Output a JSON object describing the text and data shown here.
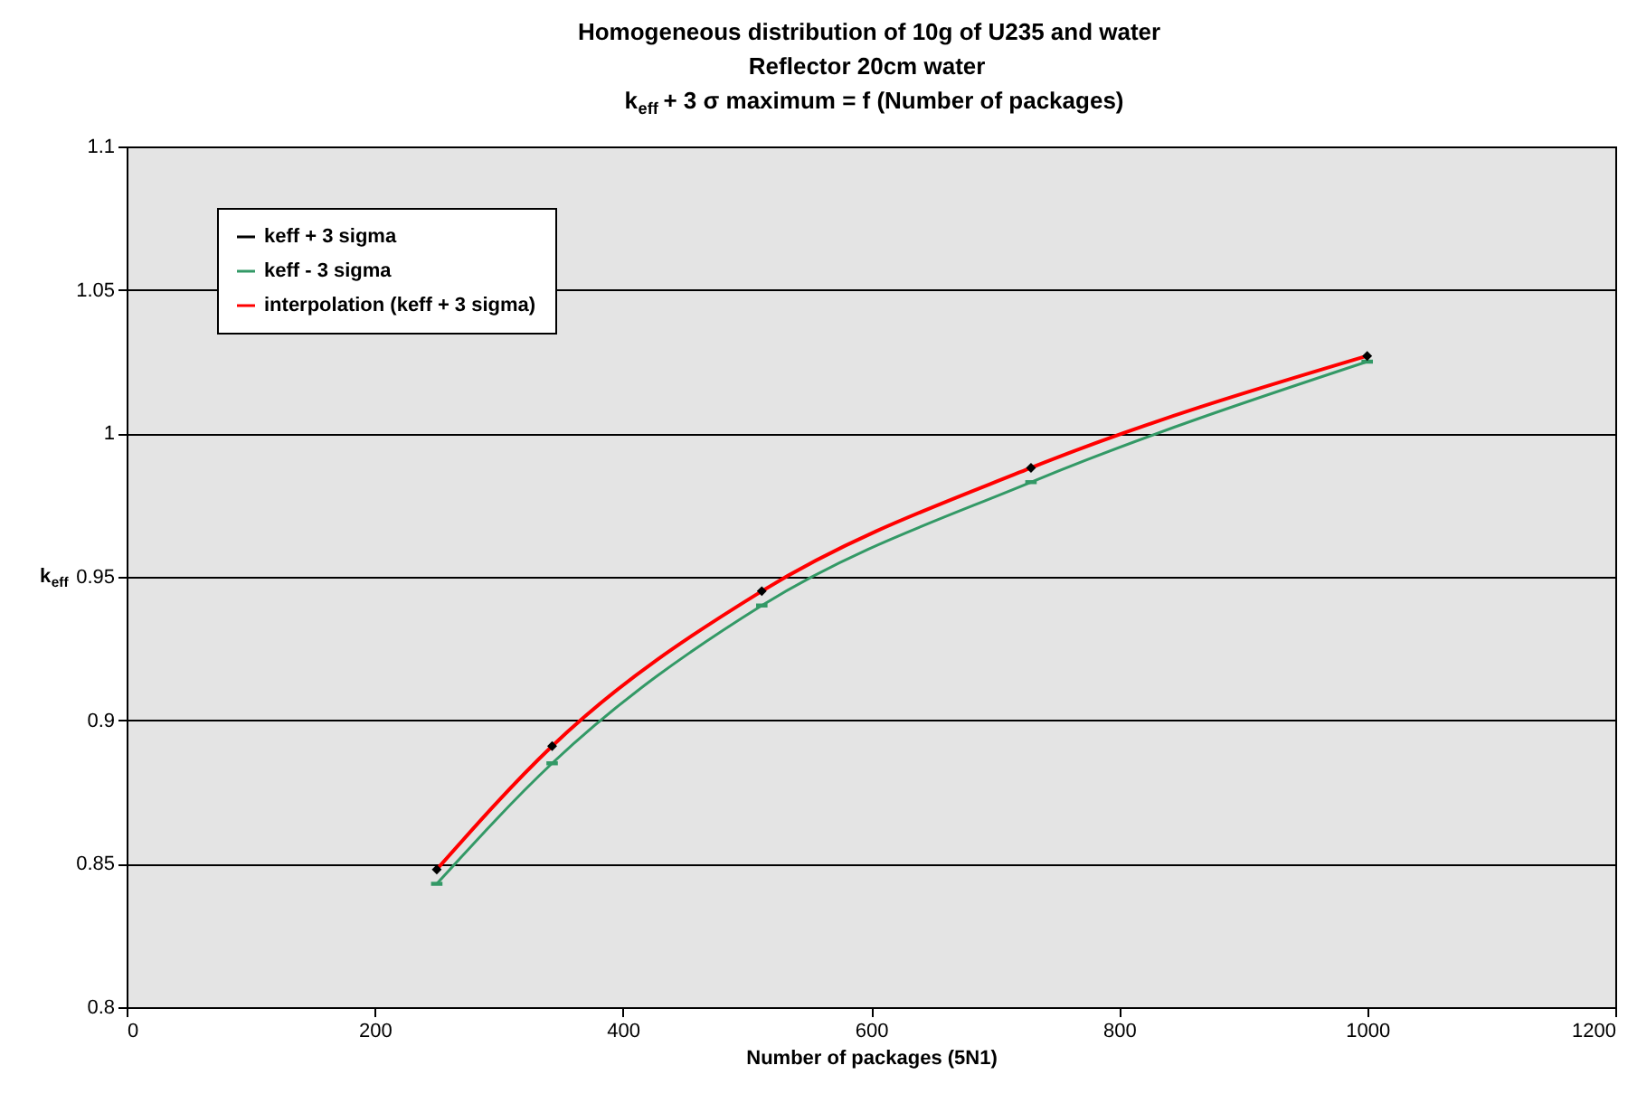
{
  "chart_data": {
    "type": "line",
    "title": [
      "Homogeneous distribution of 10g of U235 and water",
      "Reflector 20cm water",
      "k$_{eff}$ + 3 σ maximum = f (Number of packages)"
    ],
    "xlabel": "Number of packages (5N1)",
    "ylabel": "k$_{eff}$",
    "x": [
      250,
      343,
      512,
      729,
      1000
    ],
    "series": [
      {
        "name": "keff + 3 sigma",
        "type": "scatter",
        "color": "#000000",
        "marker": "diamond",
        "values": [
          0.848,
          0.891,
          0.945,
          0.988,
          1.027
        ]
      },
      {
        "name": "keff  - 3 sigma",
        "type": "line",
        "color": "#339966",
        "marker": "square",
        "line_style": "solid",
        "values": [
          0.843,
          0.885,
          0.94,
          0.983,
          1.025
        ]
      },
      {
        "name": "interpolation (keff + 3 sigma)",
        "type": "line",
        "color": "#ff0000",
        "line_style": "solid",
        "values": [
          0.848,
          0.891,
          0.945,
          0.988,
          1.027
        ]
      }
    ],
    "xlim": [
      0,
      1200
    ],
    "xticks": [
      0,
      200,
      400,
      600,
      800,
      1000,
      1200
    ],
    "ylim": [
      0.8,
      1.1
    ],
    "yticks": [
      0.8,
      0.85,
      0.9,
      0.95,
      1,
      1.05,
      1.1
    ],
    "grid": "y",
    "legend": "top left"
  }
}
